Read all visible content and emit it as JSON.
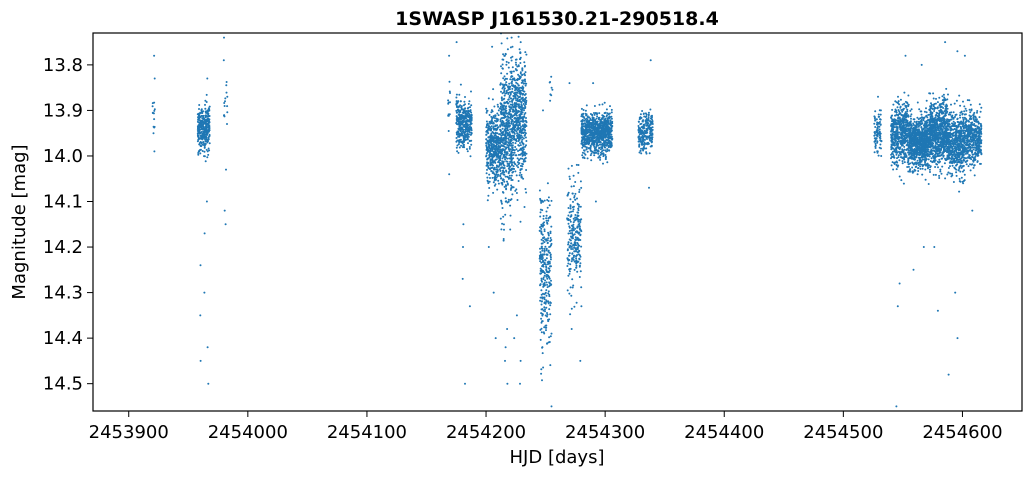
{
  "chart_data": {
    "type": "scatter",
    "title": "1SWASP J161530.21-290518.4",
    "xlabel": "HJD [days]",
    "ylabel": "Magnitude [mag]",
    "xlim": [
      2453870,
      2454650
    ],
    "ylim": [
      14.56,
      13.73
    ],
    "y_inverted": true,
    "grid": false,
    "marker_color": "#1f77b4",
    "xticks": [
      2453900,
      2454000,
      2454100,
      2454200,
      2454300,
      2454400,
      2454500,
      2454600
    ],
    "xtick_labels": [
      "2453900",
      "2454000",
      "2454100",
      "2454200",
      "2454300",
      "2454400",
      "2454500",
      "2454600"
    ],
    "yticks": [
      13.8,
      13.9,
      14.0,
      14.1,
      14.2,
      14.3,
      14.4,
      14.5
    ],
    "ytick_labels": [
      "13.8",
      "13.9",
      "14.0",
      "14.1",
      "14.2",
      "14.3",
      "14.4",
      "14.5"
    ],
    "clusters": [
      {
        "x_range": [
          2453920,
          2453922
        ],
        "mag_center": 13.9,
        "mag_spread": 0.04,
        "n": 12,
        "outliers": [
          13.78,
          13.83,
          13.95,
          13.99
        ]
      },
      {
        "x_range": [
          2453958,
          2453968
        ],
        "mag_center": 13.94,
        "mag_spread": 0.045,
        "n": 320,
        "outliers": [
          14.1,
          14.17,
          14.24,
          14.3,
          14.35,
          14.42,
          14.45,
          14.5,
          13.83
        ]
      },
      {
        "x_range": [
          2453979,
          2453983
        ],
        "mag_center": 13.88,
        "mag_spread": 0.05,
        "n": 14,
        "outliers": [
          13.74,
          13.79,
          14.12,
          14.15,
          14.03
        ]
      },
      {
        "x_range": [
          2454168,
          2454170
        ],
        "mag_center": 13.9,
        "mag_spread": 0.06,
        "n": 12,
        "outliers": [
          13.78,
          14.04
        ]
      },
      {
        "x_range": [
          2454175,
          2454188
        ],
        "mag_center": 13.93,
        "mag_spread": 0.05,
        "n": 380,
        "outliers": [
          13.75,
          14.15,
          14.2,
          14.27,
          14.33,
          14.5
        ]
      },
      {
        "x_range": [
          2454200,
          2454212
        ],
        "mag_center": 13.98,
        "mag_spread": 0.07,
        "n": 460,
        "outliers": [
          13.76,
          14.2,
          14.3,
          14.4
        ]
      },
      {
        "x_range": [
          2454212,
          2454222
        ],
        "mag_center": 13.95,
        "mag_spread": 0.14,
        "n": 520,
        "outliers": [
          13.74,
          14.38,
          14.42,
          14.45,
          14.5
        ]
      },
      {
        "x_range": [
          2454222,
          2454234
        ],
        "mag_center": 13.92,
        "mag_spread": 0.12,
        "n": 520,
        "outliers": [
          13.75,
          14.35,
          14.4,
          14.45,
          14.5
        ]
      },
      {
        "x_range": [
          2454245,
          2454255
        ],
        "mag_center": 14.25,
        "mag_spread": 0.15,
        "n": 300,
        "outliers": [
          13.9,
          14.55
        ]
      },
      {
        "x_range": [
          2454253,
          2454256
        ],
        "mag_center": 13.85,
        "mag_spread": 0.04,
        "n": 8,
        "outliers": []
      },
      {
        "x_range": [
          2454268,
          2454280
        ],
        "mag_center": 14.18,
        "mag_spread": 0.1,
        "n": 260,
        "outliers": [
          13.84,
          14.38,
          14.45
        ]
      },
      {
        "x_range": [
          2454280,
          2454306
        ],
        "mag_center": 13.95,
        "mag_spread": 0.04,
        "n": 900,
        "outliers": [
          13.84,
          14.1,
          14.33
        ]
      },
      {
        "x_range": [
          2454328,
          2454340
        ],
        "mag_center": 13.95,
        "mag_spread": 0.04,
        "n": 240,
        "outliers": [
          13.79,
          14.07
        ]
      },
      {
        "x_range": [
          2454526,
          2454532
        ],
        "mag_center": 13.95,
        "mag_spread": 0.04,
        "n": 90,
        "outliers": [
          13.87
        ]
      },
      {
        "x_range": [
          2454540,
          2454555
        ],
        "mag_center": 13.95,
        "mag_spread": 0.06,
        "n": 520,
        "outliers": [
          14.28,
          14.33,
          14.55,
          13.78
        ]
      },
      {
        "x_range": [
          2454555,
          2454572
        ],
        "mag_center": 13.97,
        "mag_spread": 0.05,
        "n": 820,
        "outliers": [
          13.8,
          14.2,
          14.25
        ]
      },
      {
        "x_range": [
          2454572,
          2454588
        ],
        "mag_center": 13.95,
        "mag_spread": 0.06,
        "n": 760,
        "outliers": [
          13.75,
          14.2,
          14.34
        ]
      },
      {
        "x_range": [
          2454588,
          2454602
        ],
        "mag_center": 13.97,
        "mag_spread": 0.06,
        "n": 520,
        "outliers": [
          13.77,
          14.3,
          14.4,
          14.48
        ]
      },
      {
        "x_range": [
          2454602,
          2454616
        ],
        "mag_center": 13.96,
        "mag_spread": 0.05,
        "n": 440,
        "outliers": [
          13.78,
          14.12
        ]
      }
    ]
  }
}
